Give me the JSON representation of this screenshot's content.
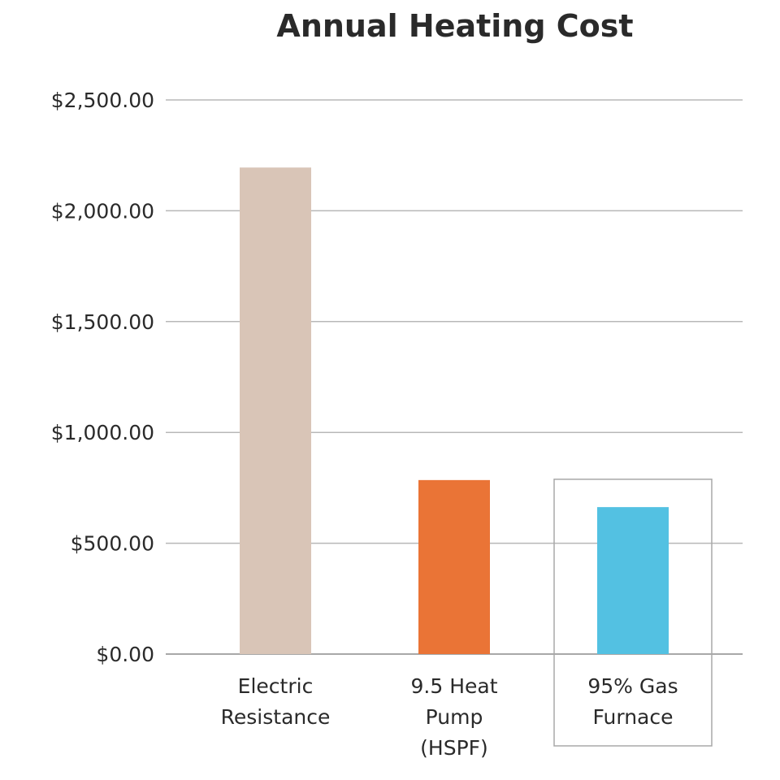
{
  "chart_data": {
    "type": "bar",
    "title": "Annual Heating Cost",
    "xlabel": "",
    "ylabel": "",
    "ylim": [
      0,
      2500
    ],
    "yticks": [
      0,
      500,
      1000,
      1500,
      2000,
      2500
    ],
    "ytick_labels": [
      "$0.00",
      "$500.00",
      "$1,000.00",
      "$1,500.00",
      "$2,000.00",
      "$2,500.00"
    ],
    "grid": true,
    "categories": [
      [
        "Electric",
        "Resistance"
      ],
      [
        "9.5 Heat",
        "Pump",
        "(HSPF)"
      ],
      [
        "95% Gas",
        "Furnace"
      ]
    ],
    "values": [
      2195,
      785,
      663
    ],
    "colors": [
      "#d9c5b7",
      "#ea7436",
      "#53c1e2"
    ],
    "highlighted_category": 2
  }
}
